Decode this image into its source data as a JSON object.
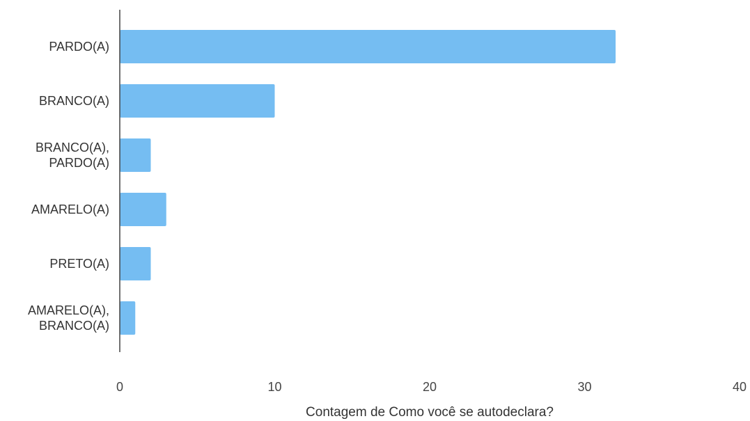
{
  "chart_data": {
    "type": "bar",
    "orientation": "horizontal",
    "categories": [
      "PARDO(A)",
      "BRANCO(A)",
      "BRANCO(A), PARDO(A)",
      "AMARELO(A)",
      "PRETO(A)",
      "AMARELO(A), BRANCO(A)"
    ],
    "values": [
      32,
      10,
      2,
      3,
      2,
      1
    ],
    "xlabel": "Contagem de Como você se autodeclara?",
    "ylabel": "",
    "title": "",
    "xlim": [
      0,
      40
    ],
    "xticks": [
      "0",
      "10",
      "20",
      "30",
      "40"
    ],
    "grid": false,
    "bar_color": "#75BDF2"
  }
}
